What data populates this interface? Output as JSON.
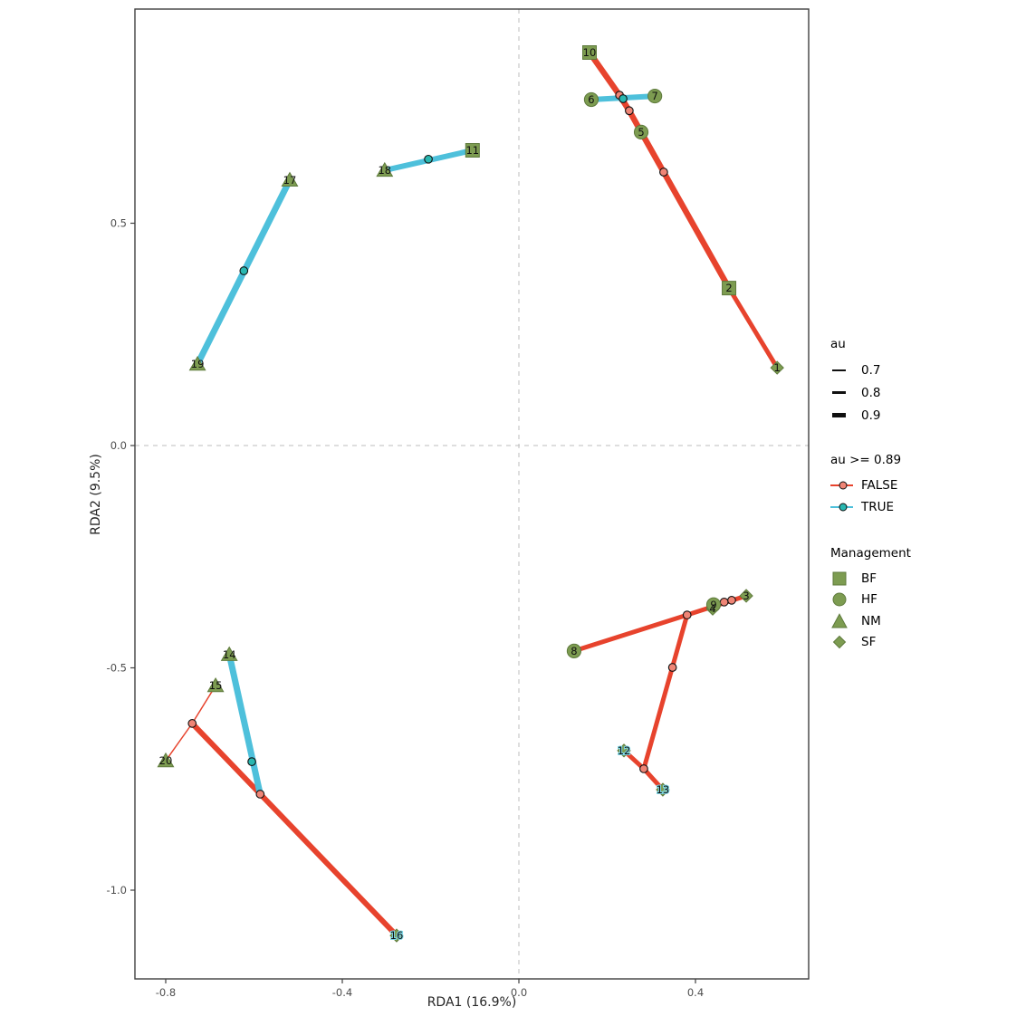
{
  "figure": {
    "background": "#ffffff"
  },
  "colors": {
    "false_line": "#E7432D",
    "true_line": "#4EC0DB",
    "false_node_fill": "#EF8576",
    "true_node_fill": "#29B7B0",
    "marker_fill": "#7D9C51",
    "marker_stroke": "#5E7A3C",
    "node_stroke": "#101010",
    "panel_border": "#404040",
    "zero_line": "#BEBEBE",
    "tick_text": "#4D4D4D",
    "axis_text": "#262626",
    "point_label": "#101010",
    "label_halo": "#7FD9E8",
    "au_swatch": "#101010"
  },
  "chart_data": {
    "type": "scatter",
    "xlabel": "RDA1 (16.9%)",
    "ylabel": "RDA2 (9.5%)",
    "xlim": [
      -0.87,
      0.656
    ],
    "ylim": [
      -1.203,
      0.981
    ],
    "grid": "zero-lines-dashed",
    "legend_position": "right",
    "x_ticks": [
      {
        "value": -0.8,
        "label": "-0.8"
      },
      {
        "value": -0.4,
        "label": "-0.4"
      },
      {
        "value": 0.0,
        "label": "0.0"
      },
      {
        "value": 0.4,
        "label": "0.4"
      }
    ],
    "y_ticks": [
      {
        "value": 0.5,
        "label": "0.5"
      },
      {
        "value": 0.0,
        "label": "0.0"
      },
      {
        "value": -0.5,
        "label": "-0.5"
      },
      {
        "value": -1.0,
        "label": "-1.0"
      }
    ],
    "points": [
      {
        "label": "1",
        "x": 0.585,
        "y": 0.175,
        "management": "SF",
        "shape": "diamond",
        "halo": false
      },
      {
        "label": "2",
        "x": 0.476,
        "y": 0.354,
        "management": "BF",
        "shape": "square",
        "halo": false
      },
      {
        "label": "3",
        "x": 0.515,
        "y": -0.338,
        "management": "SF",
        "shape": "diamond",
        "halo": false
      },
      {
        "label": "4",
        "x": 0.439,
        "y": -0.367,
        "management": "SF",
        "shape": "diamond",
        "halo": false
      },
      {
        "label": "5",
        "x": 0.277,
        "y": 0.705,
        "management": "HF",
        "shape": "circle",
        "halo": false
      },
      {
        "label": "6",
        "x": 0.164,
        "y": 0.778,
        "management": "HF",
        "shape": "circle",
        "halo": false
      },
      {
        "label": "7",
        "x": 0.308,
        "y": 0.786,
        "management": "HF",
        "shape": "circle",
        "halo": false
      },
      {
        "label": "8",
        "x": 0.125,
        "y": -0.462,
        "management": "HF",
        "shape": "circle",
        "halo": false
      },
      {
        "label": "9",
        "x": 0.441,
        "y": -0.358,
        "management": "HF",
        "shape": "circle",
        "halo": false
      },
      {
        "label": "10",
        "x": 0.16,
        "y": 0.884,
        "management": "BF",
        "shape": "square",
        "halo": false
      },
      {
        "label": "11",
        "x": -0.105,
        "y": 0.664,
        "management": "BF",
        "shape": "square",
        "halo": false
      },
      {
        "label": "12",
        "x": 0.238,
        "y": -0.686,
        "management": "SF",
        "shape": "diamond",
        "halo": true
      },
      {
        "label": "13",
        "x": 0.326,
        "y": -0.774,
        "management": "SF",
        "shape": "diamond",
        "halo": true
      },
      {
        "label": "14",
        "x": -0.656,
        "y": -0.47,
        "management": "NM",
        "shape": "triangle",
        "halo": false
      },
      {
        "label": "15",
        "x": -0.687,
        "y": -0.54,
        "management": "NM",
        "shape": "triangle",
        "halo": false
      },
      {
        "label": "16",
        "x": -0.277,
        "y": -1.102,
        "management": "SF",
        "shape": "diamond",
        "halo": true
      },
      {
        "label": "17",
        "x": -0.519,
        "y": 0.597,
        "management": "NM",
        "shape": "triangle",
        "halo": false
      },
      {
        "label": "18",
        "x": -0.304,
        "y": 0.619,
        "management": "NM",
        "shape": "triangle",
        "halo": false
      },
      {
        "label": "19",
        "x": -0.728,
        "y": 0.183,
        "management": "NM",
        "shape": "triangle",
        "halo": false
      },
      {
        "label": "20",
        "x": -0.8,
        "y": -0.709,
        "management": "NM",
        "shape": "triangle",
        "halo": false
      }
    ],
    "segments": [
      {
        "x1": 0.16,
        "y1": 0.884,
        "x2": 0.228,
        "y2": 0.788,
        "au_class": "FALSE",
        "width": 6.5
      },
      {
        "x1": 0.228,
        "y1": 0.788,
        "x2": 0.25,
        "y2": 0.753,
        "au_class": "FALSE",
        "width": 6.5
      },
      {
        "x1": 0.25,
        "y1": 0.753,
        "x2": 0.277,
        "y2": 0.705,
        "au_class": "FALSE",
        "width": 6.5
      },
      {
        "x1": 0.277,
        "y1": 0.705,
        "x2": 0.328,
        "y2": 0.615,
        "au_class": "FALSE",
        "width": 6.5
      },
      {
        "x1": 0.328,
        "y1": 0.615,
        "x2": 0.476,
        "y2": 0.354,
        "au_class": "FALSE",
        "width": 6.5
      },
      {
        "x1": 0.476,
        "y1": 0.354,
        "x2": 0.585,
        "y2": 0.175,
        "au_class": "FALSE",
        "width": 5
      },
      {
        "x1": -0.687,
        "y1": -0.54,
        "x2": -0.74,
        "y2": -0.625,
        "au_class": "FALSE",
        "width": 1.5
      },
      {
        "x1": -0.74,
        "y1": -0.625,
        "x2": -0.8,
        "y2": -0.709,
        "au_class": "FALSE",
        "width": 1.5
      },
      {
        "x1": -0.74,
        "y1": -0.625,
        "x2": -0.277,
        "y2": -1.102,
        "au_class": "FALSE",
        "width": 6
      },
      {
        "x1": 0.125,
        "y1": -0.462,
        "x2": 0.381,
        "y2": -0.381,
        "au_class": "FALSE",
        "width": 5
      },
      {
        "x1": 0.381,
        "y1": -0.381,
        "x2": 0.515,
        "y2": -0.338,
        "au_class": "FALSE",
        "width": 5
      },
      {
        "x1": 0.381,
        "y1": -0.381,
        "x2": 0.283,
        "y2": -0.727,
        "au_class": "FALSE",
        "width": 5
      },
      {
        "x1": 0.238,
        "y1": -0.686,
        "x2": 0.283,
        "y2": -0.727,
        "au_class": "FALSE",
        "width": 5
      },
      {
        "x1": 0.283,
        "y1": -0.727,
        "x2": 0.326,
        "y2": -0.774,
        "au_class": "FALSE",
        "width": 5
      },
      {
        "x1": -0.728,
        "y1": 0.183,
        "x2": -0.519,
        "y2": 0.597,
        "au_class": "TRUE",
        "width": 7
      },
      {
        "x1": -0.304,
        "y1": 0.619,
        "x2": -0.105,
        "y2": 0.664,
        "au_class": "TRUE",
        "width": 6
      },
      {
        "x1": 0.164,
        "y1": 0.778,
        "x2": 0.308,
        "y2": 0.786,
        "au_class": "TRUE",
        "width": 6
      },
      {
        "x1": -0.656,
        "y1": -0.47,
        "x2": -0.586,
        "y2": -0.784,
        "au_class": "TRUE",
        "width": 7
      }
    ],
    "nodes": [
      {
        "x": 0.228,
        "y": 0.788,
        "au_class": "FALSE"
      },
      {
        "x": 0.25,
        "y": 0.753,
        "au_class": "FALSE"
      },
      {
        "x": 0.328,
        "y": 0.615,
        "au_class": "FALSE"
      },
      {
        "x": -0.74,
        "y": -0.625,
        "au_class": "FALSE"
      },
      {
        "x": -0.586,
        "y": -0.784,
        "au_class": "FALSE"
      },
      {
        "x": 0.381,
        "y": -0.381,
        "au_class": "FALSE"
      },
      {
        "x": 0.348,
        "y": -0.499,
        "au_class": "FALSE"
      },
      {
        "x": 0.465,
        "y": -0.352,
        "au_class": "FALSE"
      },
      {
        "x": 0.482,
        "y": -0.348,
        "au_class": "FALSE"
      },
      {
        "x": 0.283,
        "y": -0.727,
        "au_class": "FALSE"
      },
      {
        "x": 0.236,
        "y": 0.78,
        "au_class": "TRUE"
      },
      {
        "x": -0.623,
        "y": 0.393,
        "au_class": "TRUE"
      },
      {
        "x": -0.205,
        "y": 0.644,
        "au_class": "TRUE"
      },
      {
        "x": -0.605,
        "y": -0.711,
        "au_class": "TRUE"
      }
    ]
  },
  "legend": {
    "au": {
      "title": "au",
      "items": [
        {
          "label": "0.7",
          "line_width": 2
        },
        {
          "label": "0.8",
          "line_width": 3.5
        },
        {
          "label": "0.9",
          "line_width": 5
        }
      ]
    },
    "threshold": {
      "title": "au >= 0.89",
      "items": [
        {
          "label": "FALSE",
          "class": "FALSE"
        },
        {
          "label": "TRUE",
          "class": "TRUE"
        }
      ]
    },
    "management": {
      "title": "Management",
      "items": [
        {
          "label": "BF",
          "shape": "square"
        },
        {
          "label": "HF",
          "shape": "circle"
        },
        {
          "label": "NM",
          "shape": "triangle"
        },
        {
          "label": "SF",
          "shape": "diamond"
        }
      ]
    }
  }
}
